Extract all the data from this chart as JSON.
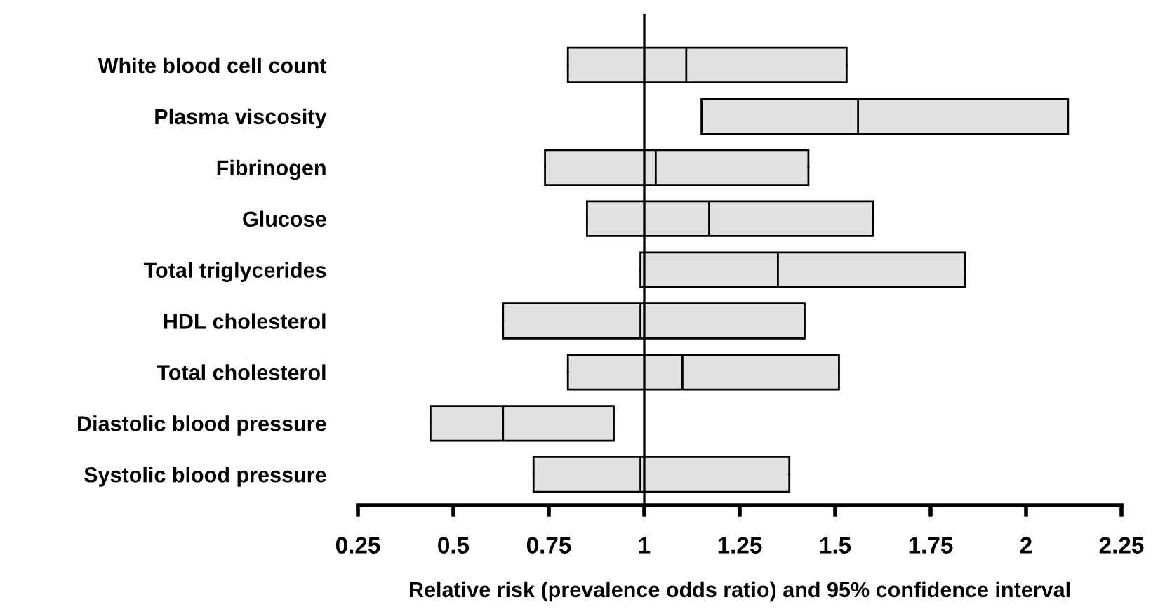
{
  "chart_data": {
    "type": "box",
    "orientation": "horizontal",
    "xlabel": "Relative risk (prevalence odds ratio) and 95% confidence interval",
    "categories": [
      "White blood cell count",
      "Plasma viscosity",
      "Fibrinogen",
      "Glucose",
      "Total triglycerides",
      "HDL cholesterol",
      "Total cholesterol",
      "Diastolic blood pressure",
      "Systolic blood pressure"
    ],
    "color": "#e2e2e2",
    "boxes": [
      {
        "low": 0.8,
        "q1": 0.8,
        "median": 1.11,
        "q3": 1.53,
        "high": 1.53
      },
      {
        "low": 1.15,
        "q1": 1.15,
        "median": 1.56,
        "q3": 2.11,
        "high": 2.11
      },
      {
        "low": 0.74,
        "q1": 0.74,
        "median": 1.03,
        "q3": 1.43,
        "high": 1.43
      },
      {
        "low": 0.85,
        "q1": 0.85,
        "median": 1.17,
        "q3": 1.6,
        "high": 1.6
      },
      {
        "low": 0.99,
        "q1": 0.99,
        "median": 1.35,
        "q3": 1.84,
        "high": 1.84
      },
      {
        "low": 0.63,
        "q1": 0.63,
        "median": 0.99,
        "q3": 1.42,
        "high": 1.42
      },
      {
        "low": 0.8,
        "q1": 0.8,
        "median": 1.1,
        "q3": 1.51,
        "high": 1.51
      },
      {
        "low": 0.44,
        "q1": 0.44,
        "median": 0.63,
        "q3": 0.92,
        "high": 0.92
      },
      {
        "low": 0.71,
        "q1": 0.71,
        "median": 0.99,
        "q3": 1.38,
        "high": 1.38
      }
    ],
    "xlim": [
      0.25,
      2.25
    ],
    "xticks": [
      0.25,
      0.5,
      0.75,
      1,
      1.25,
      1.5,
      1.75,
      2,
      2.25
    ],
    "ref_lines": [
      {
        "axis": "x",
        "value": 1,
        "color": "#000000",
        "line_style": "solid"
      }
    ],
    "grid": false,
    "legend": false
  }
}
